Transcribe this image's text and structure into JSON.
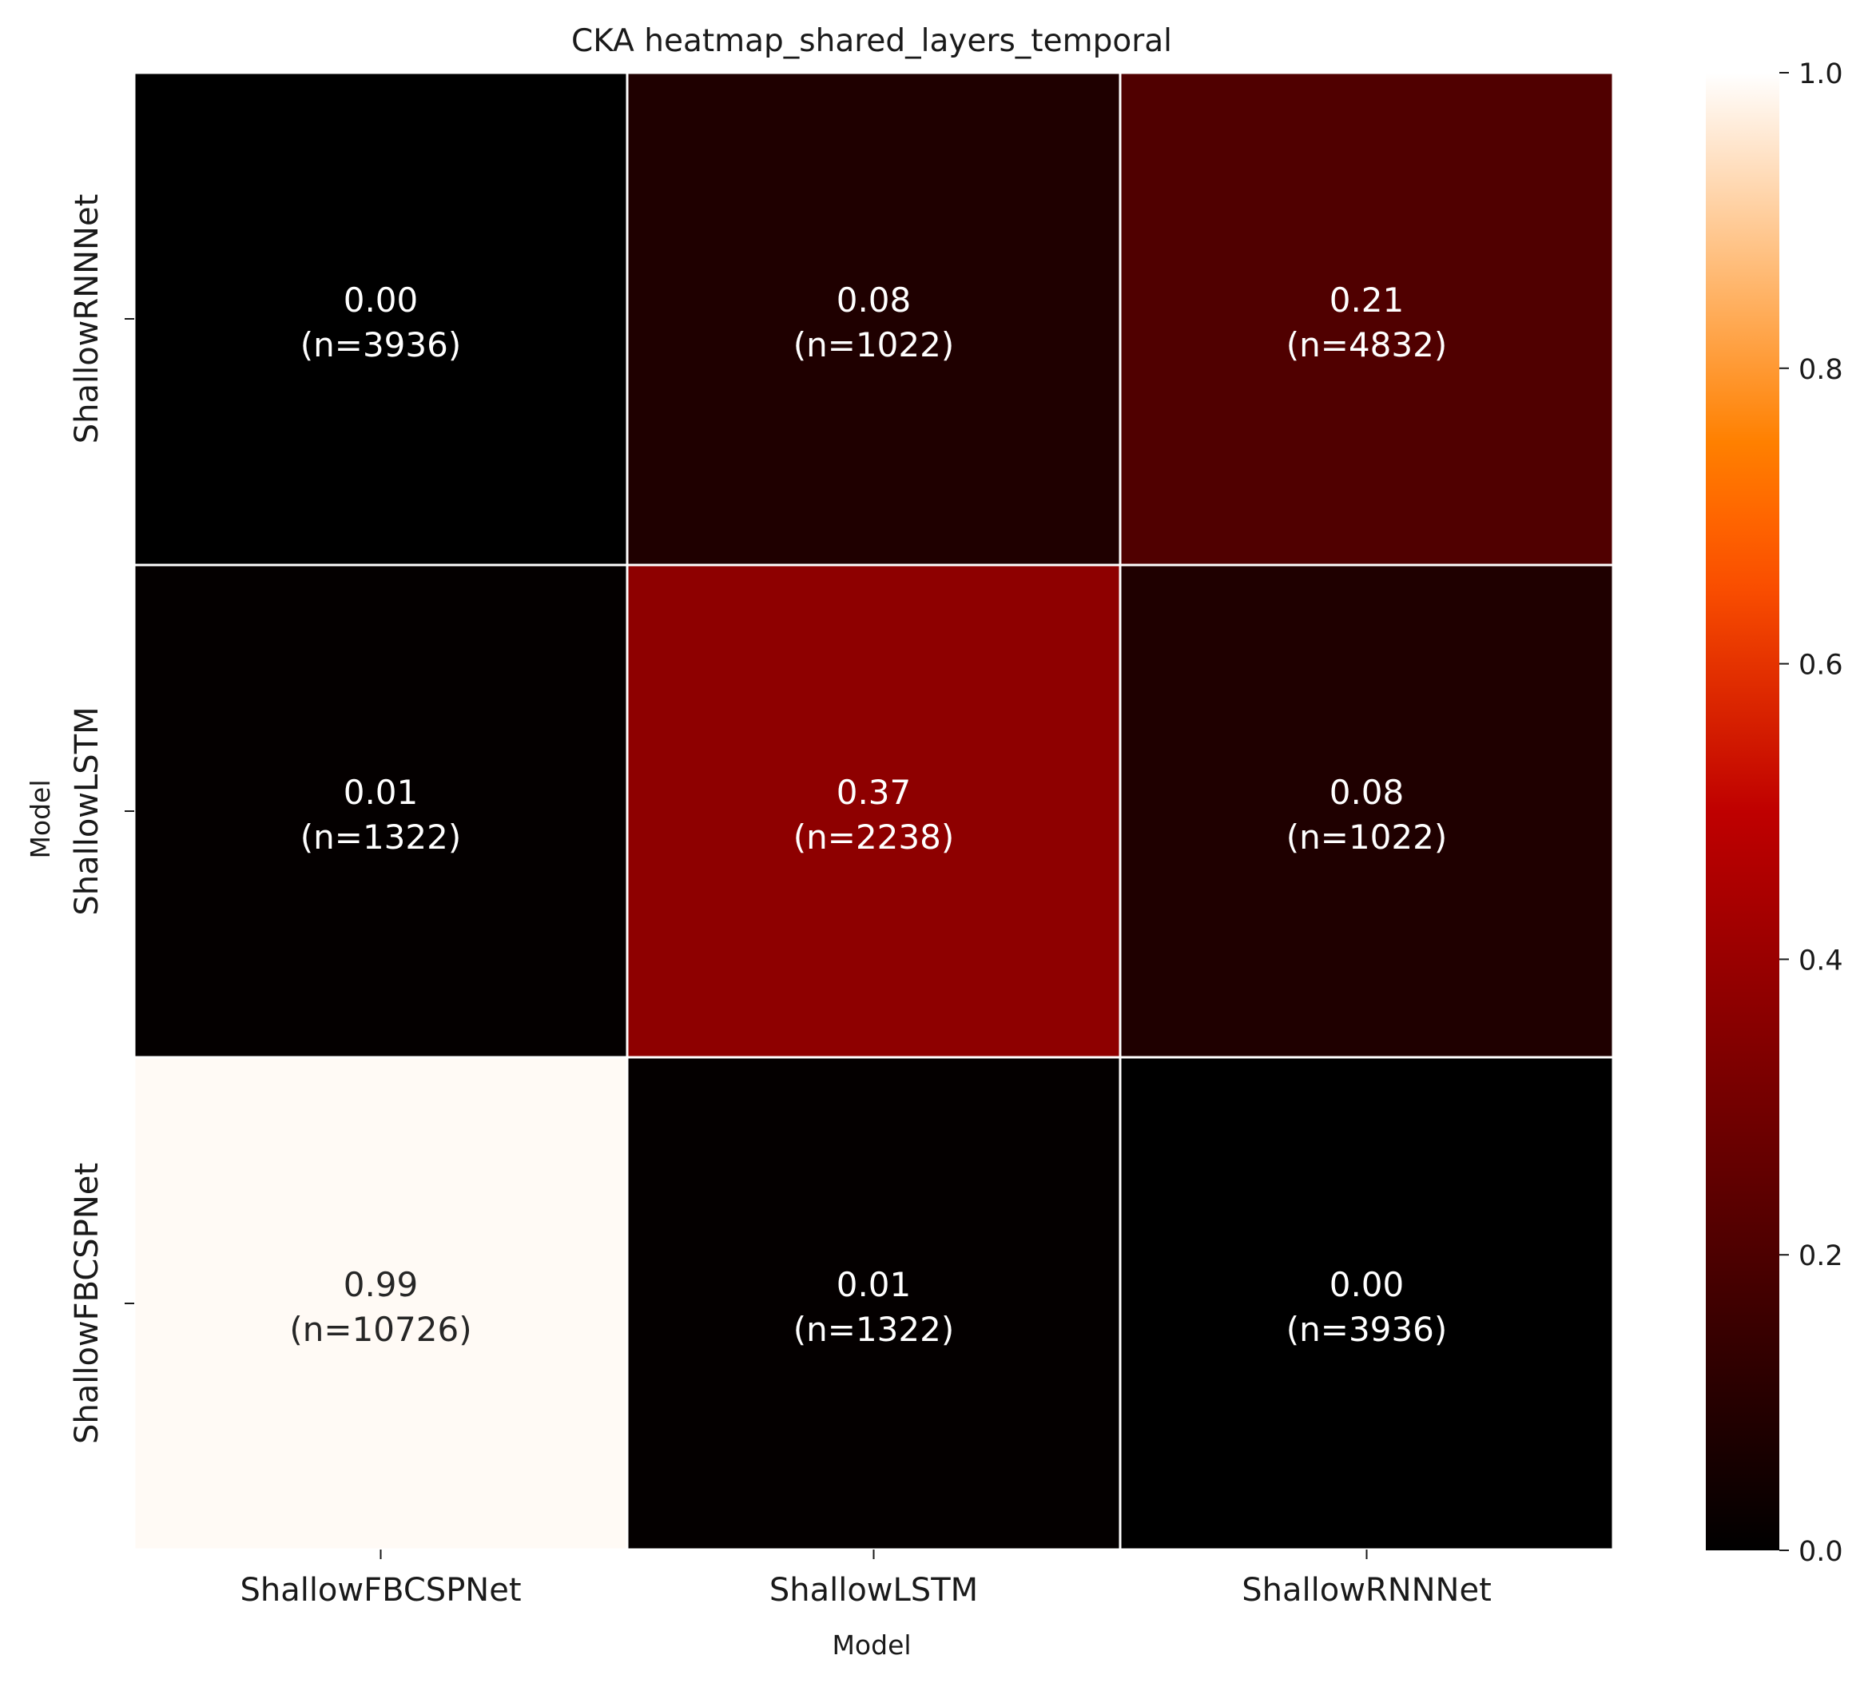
{
  "chart_data": {
    "type": "heatmap",
    "title": "CKA heatmap_shared_layers_temporal",
    "xlabel": "Model",
    "ylabel": "Model",
    "x_categories": [
      "ShallowFBCSPNet",
      "ShallowLSTM",
      "ShallowRNNNet"
    ],
    "y_categories_top_to_bottom": [
      "ShallowRNNNet",
      "ShallowLSTM",
      "ShallowFBCSPNet"
    ],
    "cells": [
      {
        "row": "ShallowRNNNet",
        "col": "ShallowFBCSPNet",
        "value": 0.0,
        "value_label": "0.00",
        "n_label": "(n=3936)"
      },
      {
        "row": "ShallowRNNNet",
        "col": "ShallowLSTM",
        "value": 0.08,
        "value_label": "0.08",
        "n_label": "(n=1022)"
      },
      {
        "row": "ShallowRNNNet",
        "col": "ShallowRNNNet",
        "value": 0.21,
        "value_label": "0.21",
        "n_label": "(n=4832)"
      },
      {
        "row": "ShallowLSTM",
        "col": "ShallowFBCSPNet",
        "value": 0.01,
        "value_label": "0.01",
        "n_label": "(n=1322)"
      },
      {
        "row": "ShallowLSTM",
        "col": "ShallowLSTM",
        "value": 0.37,
        "value_label": "0.37",
        "n_label": "(n=2238)"
      },
      {
        "row": "ShallowLSTM",
        "col": "ShallowRNNNet",
        "value": 0.08,
        "value_label": "0.08",
        "n_label": "(n=1022)"
      },
      {
        "row": "ShallowFBCSPNet",
        "col": "ShallowFBCSPNet",
        "value": 0.99,
        "value_label": "0.99",
        "n_label": "(n=10726)"
      },
      {
        "row": "ShallowFBCSPNet",
        "col": "ShallowLSTM",
        "value": 0.01,
        "value_label": "0.01",
        "n_label": "(n=1322)"
      },
      {
        "row": "ShallowFBCSPNet",
        "col": "ShallowRNNNet",
        "value": 0.0,
        "value_label": "0.00",
        "n_label": "(n=3936)"
      }
    ],
    "colorbar": {
      "colormap": "gist_heat",
      "range": [
        0.0,
        1.0
      ],
      "tick_values": [
        0.0,
        0.2,
        0.4,
        0.6,
        0.8,
        1.0
      ],
      "tick_labels": [
        "0.0",
        "0.2",
        "0.4",
        "0.6",
        "0.8",
        "1.0"
      ]
    },
    "grid": false,
    "cell_separator_color": "#ffffff"
  }
}
